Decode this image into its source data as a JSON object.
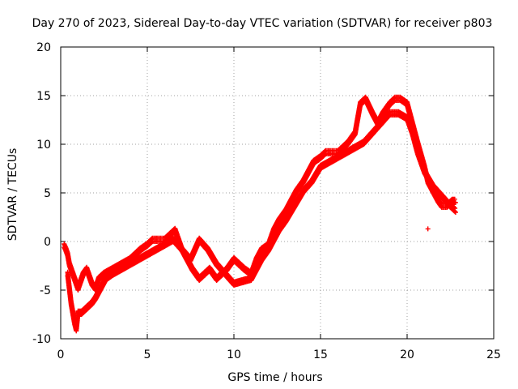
{
  "chart_data": {
    "type": "scatter",
    "title": "Day 270 of 2023, Sidereal Day-to-day VTEC variation (SDTVAR) for receiver p803",
    "xlabel": "GPS time / hours",
    "ylabel": "SDTVAR / TECUs",
    "xlim": [
      0,
      25
    ],
    "ylim": [
      -10,
      20
    ],
    "xticks": [
      0,
      5,
      10,
      15,
      20,
      25
    ],
    "yticks": [
      -10,
      -5,
      0,
      5,
      10,
      15,
      20
    ],
    "grid": true,
    "series": [
      {
        "name": "SDTVAR",
        "color": "#ff0000",
        "marker": "plus",
        "x": [
          0.2,
          0.3,
          0.4,
          0.5,
          0.6,
          0.7,
          0.8,
          0.9,
          1.0,
          1.1,
          1.2,
          1.3,
          1.5,
          1.6,
          1.7,
          1.8,
          2.0,
          2.2,
          2.5,
          3.0,
          3.5,
          4.0,
          4.3,
          4.6,
          5.0,
          5.3,
          5.6,
          6.0,
          6.3,
          6.6,
          7.0,
          7.3,
          7.6,
          8.0,
          8.3,
          8.6,
          9.0,
          9.3,
          9.6,
          10.0,
          10.3,
          10.6,
          11.0,
          11.3,
          11.6,
          12.0,
          12.3,
          12.6,
          13.0,
          13.3,
          13.6,
          14.0,
          14.3,
          14.6,
          15.0,
          15.3,
          15.6,
          16.0,
          16.3,
          16.6,
          17.0,
          17.3,
          17.6,
          18.0,
          18.3,
          18.6,
          19.0,
          19.3,
          19.6,
          20.0,
          20.3,
          20.6,
          21.0,
          21.2,
          21.5,
          21.8,
          22.0,
          22.3,
          22.6,
          22.8
        ],
        "y": [
          -0.6,
          -1.0,
          -1.5,
          -2.5,
          -3.0,
          -3.5,
          -4.0,
          -4.5,
          -5.0,
          -4.5,
          -4.0,
          -3.5,
          -3.0,
          -3.5,
          -4.0,
          -4.5,
          -5.0,
          -4.0,
          -3.5,
          -3.0,
          -2.5,
          -2.0,
          -1.5,
          -1.0,
          -0.5,
          0.0,
          0.0,
          0.0,
          0.5,
          1.0,
          -1.0,
          -2.0,
          -3.0,
          -4.0,
          -3.5,
          -3.0,
          -4.0,
          -3.5,
          -3.0,
          -2.0,
          -2.5,
          -3.0,
          -3.5,
          -2.0,
          -1.0,
          -0.5,
          1.0,
          2.0,
          3.0,
          4.0,
          5.0,
          6.0,
          7.0,
          8.0,
          8.5,
          9.0,
          9.0,
          9.0,
          9.5,
          10.0,
          11.0,
          14.0,
          14.5,
          13.0,
          12.0,
          13.0,
          14.0,
          14.5,
          14.5,
          14.0,
          12.0,
          10.0,
          7.5,
          6.0,
          5.0,
          4.0,
          3.5,
          3.5,
          4.0,
          4.0
        ],
        "x2": [
          0.4,
          0.5,
          0.6,
          0.7,
          0.8,
          0.9,
          1.0,
          1.2,
          1.5,
          1.8,
          2.0,
          2.3,
          2.6,
          3.0,
          3.5,
          4.0,
          4.5,
          5.0,
          5.5,
          6.0,
          6.5,
          7.0,
          7.5,
          8.0,
          8.5,
          9.0,
          9.5,
          10.0,
          11.0,
          11.3,
          11.6,
          12.0,
          12.3,
          12.6,
          13.0,
          13.5,
          14.0,
          14.5,
          15.0,
          15.5,
          16.0,
          16.5,
          17.0,
          17.5,
          18.0,
          18.5,
          19.0,
          19.5,
          20.0,
          20.3,
          20.6,
          21.0,
          21.5,
          22.0,
          22.5,
          22.8
        ],
        "y2": [
          -3.5,
          -5.0,
          -6.5,
          -7.5,
          -8.5,
          -9.2,
          -7.5,
          -7.5,
          -7.0,
          -6.5,
          -6.0,
          -5.0,
          -4.0,
          -3.5,
          -3.0,
          -2.5,
          -2.0,
          -1.5,
          -1.0,
          -0.5,
          0.0,
          -1.0,
          -2.0,
          0.0,
          -1.0,
          -2.5,
          -3.5,
          -4.5,
          -4.0,
          -3.0,
          -2.0,
          -1.0,
          0.0,
          1.0,
          2.0,
          3.5,
          5.0,
          6.0,
          7.5,
          8.0,
          8.5,
          9.0,
          9.5,
          10.0,
          11.0,
          12.0,
          13.0,
          13.0,
          12.5,
          11.0,
          9.0,
          7.0,
          5.5,
          4.5,
          3.5,
          3.0
        ]
      }
    ],
    "outliers": [
      {
        "x": 21.2,
        "y": 1.3
      }
    ]
  }
}
